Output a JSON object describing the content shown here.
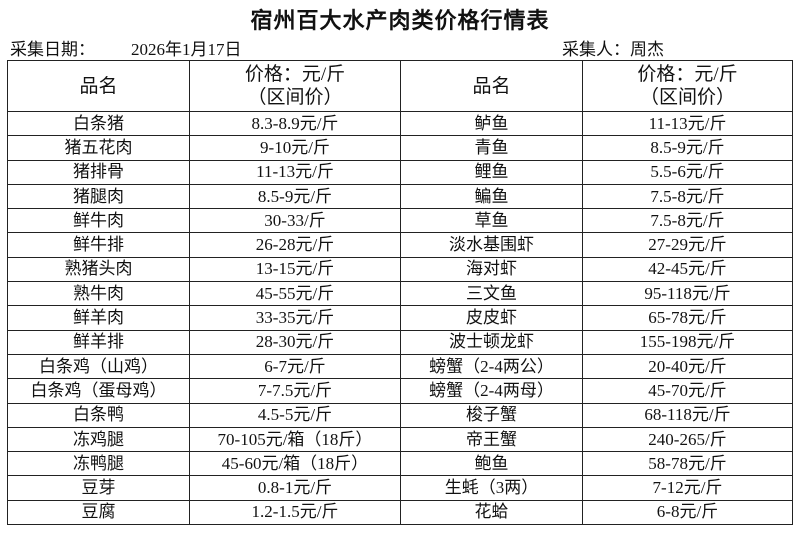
{
  "title": "宿州百大水产肉类价格行情表",
  "collection": {
    "date_label": "采集日期：",
    "date": "2026年1月17日",
    "collector_label": "采集人：",
    "collector": "周杰"
  },
  "headers": {
    "name": "品名",
    "price_line1": "价格：元/斤",
    "price_line2": "（区间价）"
  },
  "rows": [
    {
      "left_name": "白条猪",
      "left_price": "8.3-8.9元/斤",
      "right_name": "鲈鱼",
      "right_price": "11-13元/斤"
    },
    {
      "left_name": "猪五花肉",
      "left_price": "9-10元/斤",
      "right_name": "青鱼",
      "right_price": "8.5-9元/斤"
    },
    {
      "left_name": "猪排骨",
      "left_price": "11-13元/斤",
      "right_name": "鲤鱼",
      "right_price": "5.5-6元/斤"
    },
    {
      "left_name": "猪腿肉",
      "left_price": "8.5-9元/斤",
      "right_name": "鳊鱼",
      "right_price": "7.5-8元/斤"
    },
    {
      "left_name": "鲜牛肉",
      "left_price": "30-33/斤",
      "right_name": "草鱼",
      "right_price": "7.5-8元/斤"
    },
    {
      "left_name": "鲜牛排",
      "left_price": "26-28元/斤",
      "right_name": "淡水基围虾",
      "right_price": "27-29元/斤"
    },
    {
      "left_name": "熟猪头肉",
      "left_price": "13-15元/斤",
      "right_name": "海对虾",
      "right_price": "42-45元/斤"
    },
    {
      "left_name": "熟牛肉",
      "left_price": "45-55元/斤",
      "right_name": "三文鱼",
      "right_price": "95-118元/斤"
    },
    {
      "left_name": "鲜羊肉",
      "left_price": "33-35元/斤",
      "right_name": "皮皮虾",
      "right_price": "65-78元/斤"
    },
    {
      "left_name": "鲜羊排",
      "left_price": "28-30元/斤",
      "right_name": "波士顿龙虾",
      "right_price": "155-198元/斤"
    },
    {
      "left_name": "白条鸡（山鸡）",
      "left_price": "6-7元/斤",
      "right_name": "螃蟹（2-4两公）",
      "right_price": "20-40元/斤"
    },
    {
      "left_name": "白条鸡（蛋母鸡）",
      "left_price": "7-7.5元/斤",
      "right_name": "螃蟹（2-4两母）",
      "right_price": "45-70元/斤"
    },
    {
      "left_name": "白条鸭",
      "left_price": "4.5-5元/斤",
      "right_name": "梭子蟹",
      "right_price": "68-118元/斤"
    },
    {
      "left_name": "冻鸡腿",
      "left_price": "70-105元/箱（18斤）",
      "right_name": "帝王蟹",
      "right_price": "240-265/斤"
    },
    {
      "left_name": "冻鸭腿",
      "left_price": "45-60元/箱（18斤）",
      "right_name": "鲍鱼",
      "right_price": "58-78元/斤"
    },
    {
      "left_name": "豆芽",
      "left_price": "0.8-1元/斤",
      "right_name": "生蚝（3两）",
      "right_price": "7-12元/斤"
    },
    {
      "left_name": "豆腐",
      "left_price": "1.2-1.5元/斤",
      "right_name": "花蛤",
      "right_price": "6-8元/斤"
    }
  ]
}
